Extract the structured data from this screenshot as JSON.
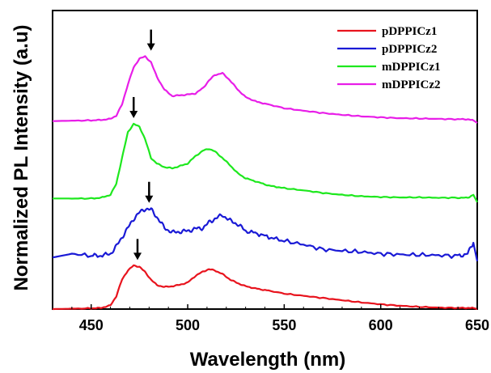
{
  "chart_data": {
    "type": "line",
    "title": "",
    "xlabel": "Wavelength (nm)",
    "ylabel": "Normalized PL Intensity (a.u)",
    "xlim": [
      430,
      650
    ],
    "ylim": [
      0,
      8.1
    ],
    "x_ticks": [
      450,
      500,
      550,
      600,
      650
    ],
    "grid": false,
    "legend_position": "top-right",
    "x": [
      430,
      440,
      450,
      455,
      460,
      463,
      466,
      469,
      472,
      475,
      478,
      481,
      484,
      488,
      492,
      496,
      500,
      504,
      508,
      511,
      514,
      518,
      522,
      526,
      530,
      536,
      542,
      550,
      560,
      570,
      580,
      590,
      600,
      610,
      620,
      630,
      640,
      645,
      648,
      650
    ],
    "series": [
      {
        "name": "pDPPICz1",
        "color": "#e8141e",
        "values": [
          0.0,
          0.01,
          0.02,
          0.03,
          0.1,
          0.35,
          0.8,
          1.05,
          1.18,
          1.15,
          1.0,
          0.8,
          0.65,
          0.6,
          0.62,
          0.66,
          0.72,
          0.9,
          1.02,
          1.08,
          1.05,
          0.95,
          0.8,
          0.7,
          0.62,
          0.55,
          0.5,
          0.42,
          0.36,
          0.3,
          0.24,
          0.18,
          0.13,
          0.09,
          0.06,
          0.04,
          0.03,
          0.03,
          0.03,
          0.0
        ]
      },
      {
        "name": "pDPPICz2",
        "color": "#1a1ad6",
        "values": [
          1.4,
          1.5,
          1.45,
          1.45,
          1.5,
          1.7,
          1.95,
          2.2,
          2.45,
          2.62,
          2.72,
          2.7,
          2.5,
          2.2,
          2.08,
          2.1,
          2.12,
          2.18,
          2.2,
          2.35,
          2.45,
          2.55,
          2.4,
          2.3,
          2.12,
          2.05,
          1.95,
          1.85,
          1.75,
          1.62,
          1.58,
          1.55,
          1.5,
          1.48,
          1.47,
          1.46,
          1.44,
          1.5,
          1.8,
          1.3
        ]
      },
      {
        "name": "mDPPICz1",
        "color": "#1ee81e",
        "values": [
          3.0,
          3.0,
          3.0,
          3.02,
          3.1,
          3.4,
          4.1,
          4.8,
          5.02,
          4.95,
          4.6,
          4.1,
          3.95,
          3.85,
          3.82,
          3.88,
          3.95,
          4.15,
          4.3,
          4.35,
          4.28,
          4.1,
          3.9,
          3.68,
          3.55,
          3.45,
          3.35,
          3.28,
          3.22,
          3.15,
          3.1,
          3.06,
          3.04,
          3.03,
          3.03,
          3.02,
          3.02,
          3.02,
          3.1,
          2.9
        ]
      },
      {
        "name": "mDPPICz2",
        "color": "#e81ee8",
        "values": [
          5.1,
          5.11,
          5.12,
          5.13,
          5.16,
          5.25,
          5.55,
          6.1,
          6.55,
          6.8,
          6.85,
          6.7,
          6.3,
          5.95,
          5.78,
          5.8,
          5.82,
          5.85,
          6.0,
          6.2,
          6.35,
          6.4,
          6.2,
          5.95,
          5.75,
          5.62,
          5.55,
          5.45,
          5.38,
          5.32,
          5.27,
          5.23,
          5.2,
          5.18,
          5.17,
          5.16,
          5.15,
          5.15,
          5.12,
          5.05
        ]
      }
    ],
    "annotations": [
      {
        "type": "arrow-down",
        "x": 474,
        "y": 1.2,
        "series": "pDPPICz1"
      },
      {
        "type": "arrow-down",
        "x": 480,
        "y": 2.75,
        "series": "pDPPICz2"
      },
      {
        "type": "arrow-down",
        "x": 472,
        "y": 5.05,
        "series": "mDPPICz1"
      },
      {
        "type": "arrow-down",
        "x": 481,
        "y": 6.88,
        "series": "mDPPICz2"
      }
    ]
  }
}
